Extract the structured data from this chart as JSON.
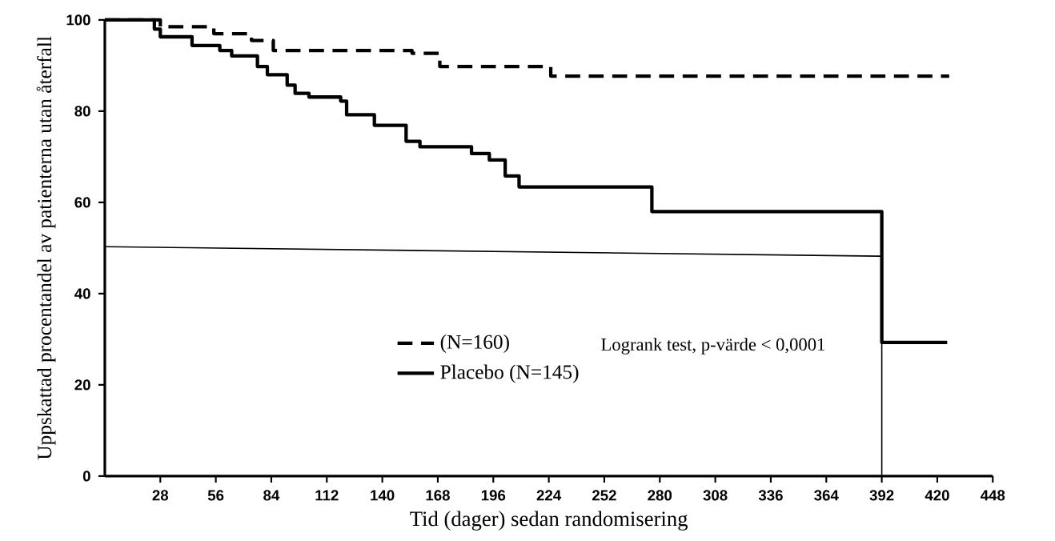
{
  "chart_data": {
    "type": "step",
    "xlabel": "Tid (dager) sedan randomisering",
    "ylabel": "Uppskattad procentandel av patienterna utan återfall",
    "xlim": [
      0,
      448
    ],
    "ylim": [
      0,
      100
    ],
    "xticks": [
      28,
      56,
      84,
      112,
      140,
      168,
      196,
      224,
      252,
      280,
      308,
      336,
      364,
      392,
      420,
      448
    ],
    "yticks": [
      0,
      20,
      40,
      60,
      80,
      100
    ],
    "grid": false,
    "legend": "bottom",
    "annotations": [
      "Logrank test, p-värde < 0,0001"
    ],
    "series": [
      {
        "name": "(N=160)",
        "color": "#000000",
        "line_style": "dashed",
        "x": [
          0,
          28,
          55,
          74,
          85,
          155,
          169,
          225,
          426
        ],
        "values": [
          100,
          98.5,
          97,
          95.5,
          93.3,
          92.7,
          89.8,
          87.7,
          87.7
        ]
      },
      {
        "name": "Placebo (N=145)",
        "color": "#000000",
        "line_style": "solid",
        "x": [
          0,
          25,
          28,
          30,
          44,
          58,
          64,
          77,
          82,
          92,
          96,
          103,
          119,
          122,
          136,
          152,
          159,
          185,
          194,
          202,
          209,
          276,
          392,
          425
        ],
        "values": [
          100,
          98,
          96.3,
          96.3,
          94.4,
          93.3,
          92.1,
          89.8,
          88,
          85.7,
          83.9,
          83.1,
          82.2,
          79.2,
          76.9,
          73.4,
          72.2,
          70.7,
          69.3,
          65.8,
          63.4,
          58,
          29.3,
          29.3
        ]
      },
      {
        "type": "line",
        "color": "#000000",
        "line_style": "solid",
        "x": [
          0,
          392,
          392
        ],
        "values": [
          50.3,
          48.2,
          0
        ]
      }
    ]
  }
}
